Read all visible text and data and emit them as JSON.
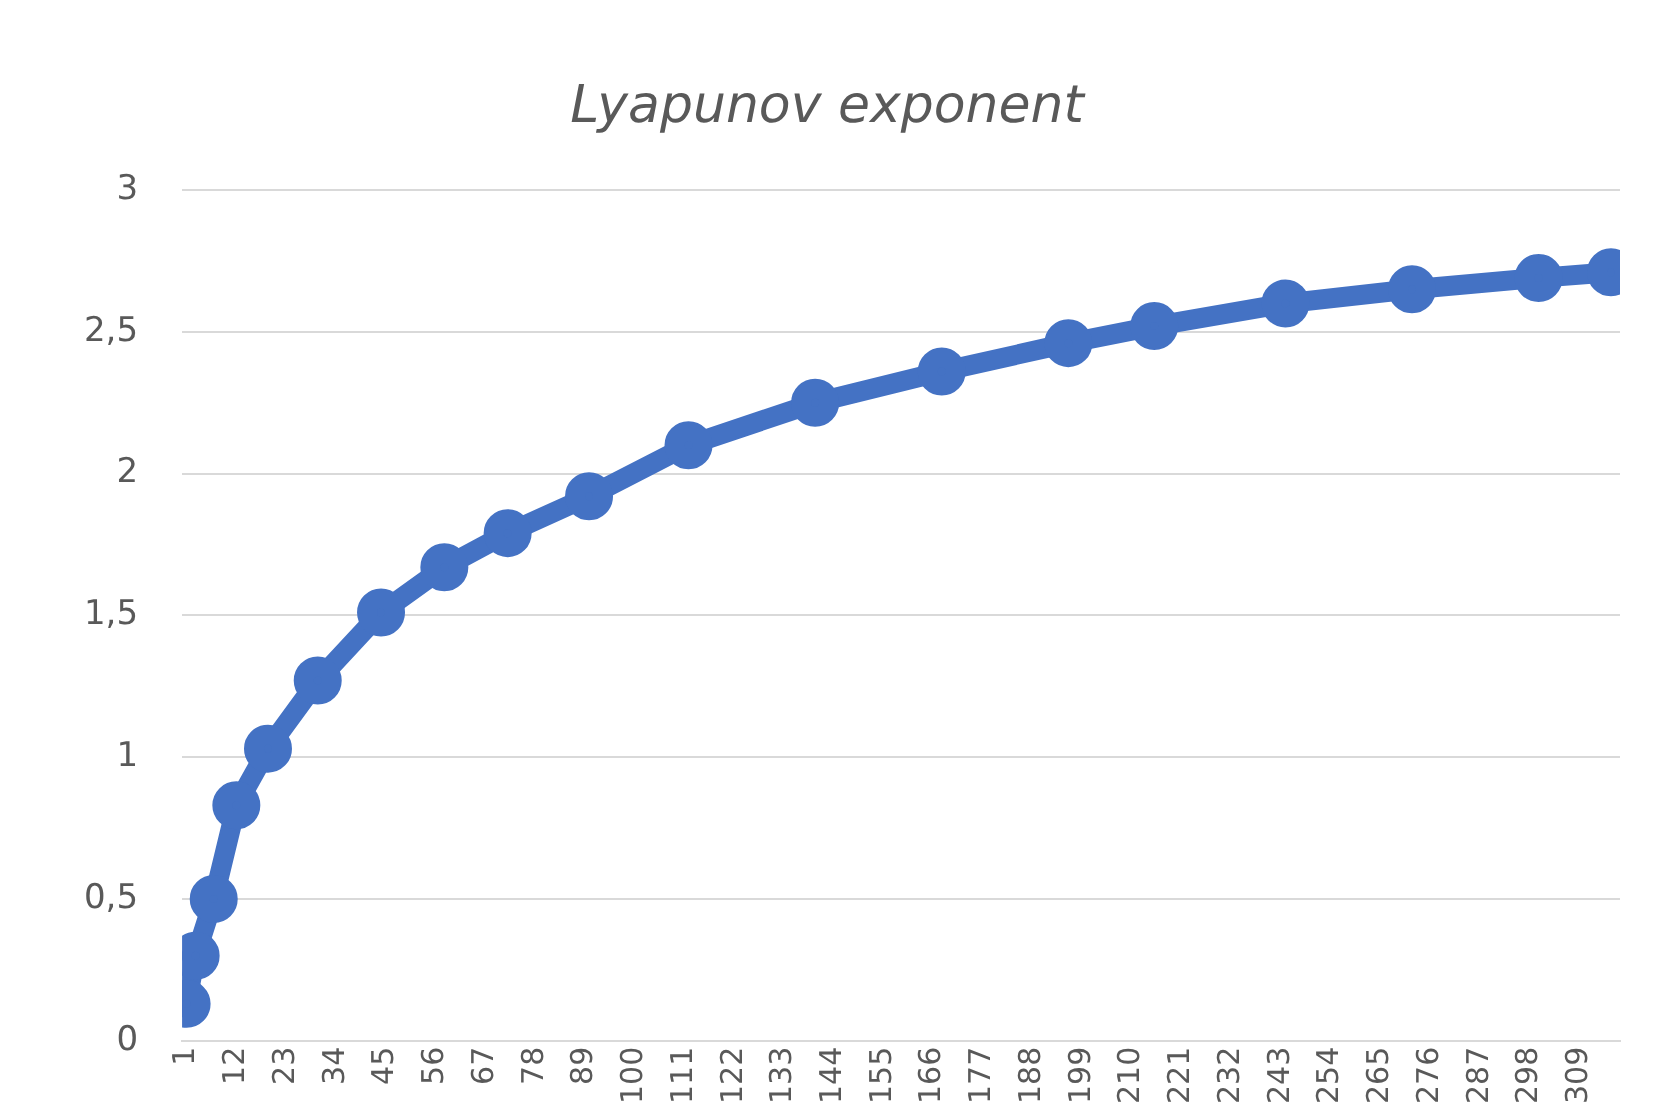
{
  "chart_data": {
    "type": "line",
    "title": "Lyapunov exponent",
    "x": [
      1,
      3,
      7,
      12,
      19,
      30,
      44,
      58,
      72,
      90,
      112,
      140,
      168,
      196,
      215,
      244,
      272,
      300,
      316
    ],
    "series": [
      {
        "color": "#4472c4",
        "values": [
          0.13,
          0.3,
          0.5,
          0.83,
          1.03,
          1.27,
          1.51,
          1.67,
          1.79,
          1.92,
          2.1,
          2.25,
          2.36,
          2.46,
          2.52,
          2.6,
          2.65,
          2.69,
          2.71
        ]
      }
    ],
    "xlim": [
      0,
      318
    ],
    "xticks": [
      1,
      12,
      23,
      34,
      45,
      56,
      67,
      78,
      89,
      100,
      111,
      122,
      133,
      144,
      155,
      166,
      177,
      188,
      199,
      210,
      221,
      232,
      243,
      254,
      265,
      276,
      287,
      298,
      309
    ],
    "ylim": [
      0,
      3
    ],
    "yticks": [
      0,
      {
        "value": 0.5,
        "label": "0,5"
      },
      1,
      {
        "value": 1.5,
        "label": "1,5"
      },
      2,
      {
        "value": 2.5,
        "label": "2,5"
      },
      3
    ],
    "grid": "y",
    "legend": false,
    "marker": "circle",
    "line_style": "solid"
  }
}
